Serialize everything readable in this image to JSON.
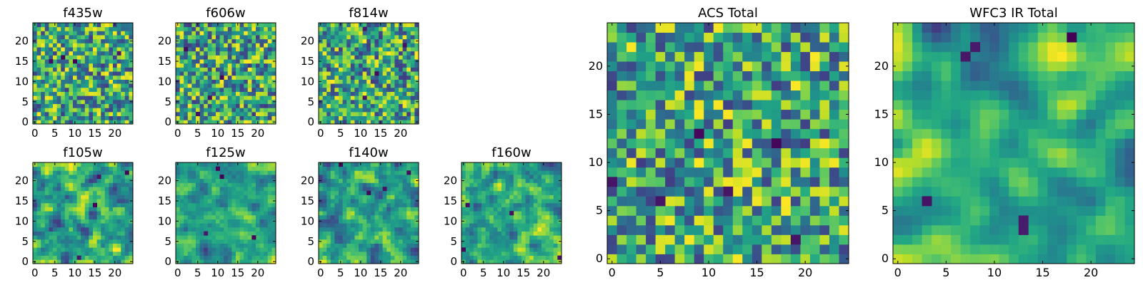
{
  "figure": {
    "colormap": "viridis"
  },
  "chart_data": [
    {
      "type": "heatmap",
      "title": "f435w",
      "grid_size": [
        25,
        25
      ],
      "colormap": "viridis",
      "xticks": [
        0,
        5,
        10,
        15,
        20
      ],
      "yticks": [
        0,
        5,
        10,
        15,
        20
      ],
      "xlim": [
        -0.5,
        24.5
      ],
      "ylim": [
        -0.5,
        24.5
      ]
    },
    {
      "type": "heatmap",
      "title": "f606w",
      "grid_size": [
        25,
        25
      ],
      "colormap": "viridis",
      "xticks": [
        0,
        5,
        10,
        15,
        20
      ],
      "yticks": [
        0,
        5,
        10,
        15,
        20
      ],
      "xlim": [
        -0.5,
        24.5
      ],
      "ylim": [
        -0.5,
        24.5
      ]
    },
    {
      "type": "heatmap",
      "title": "f814w",
      "grid_size": [
        25,
        25
      ],
      "colormap": "viridis",
      "xticks": [
        0,
        5,
        10,
        15,
        20
      ],
      "yticks": [
        0,
        5,
        10,
        15,
        20
      ],
      "xlim": [
        -0.5,
        24.5
      ],
      "ylim": [
        -0.5,
        24.5
      ]
    },
    {
      "type": "heatmap",
      "title": "f105w",
      "grid_size": [
        25,
        25
      ],
      "colormap": "viridis",
      "xticks": [
        0,
        5,
        10,
        15,
        20
      ],
      "yticks": [
        0,
        5,
        10,
        15,
        20
      ],
      "xlim": [
        -0.5,
        24.5
      ],
      "ylim": [
        -0.5,
        24.5
      ]
    },
    {
      "type": "heatmap",
      "title": "f125w",
      "grid_size": [
        25,
        25
      ],
      "colormap": "viridis",
      "xticks": [
        0,
        5,
        10,
        15,
        20
      ],
      "yticks": [
        0,
        5,
        10,
        15,
        20
      ],
      "xlim": [
        -0.5,
        24.5
      ],
      "ylim": [
        -0.5,
        24.5
      ]
    },
    {
      "type": "heatmap",
      "title": "f140w",
      "grid_size": [
        25,
        25
      ],
      "colormap": "viridis",
      "xticks": [
        0,
        5,
        10,
        15,
        20
      ],
      "yticks": [
        0,
        5,
        10,
        15,
        20
      ],
      "xlim": [
        -0.5,
        24.5
      ],
      "ylim": [
        -0.5,
        24.5
      ]
    },
    {
      "type": "heatmap",
      "title": "f160w",
      "grid_size": [
        25,
        25
      ],
      "colormap": "viridis",
      "xticks": [
        0,
        5,
        10,
        15,
        20
      ],
      "yticks": [
        0,
        5,
        10,
        15,
        20
      ],
      "xlim": [
        -0.5,
        24.5
      ],
      "ylim": [
        -0.5,
        24.5
      ]
    },
    {
      "type": "heatmap",
      "title": "ACS Total",
      "grid_size": [
        25,
        25
      ],
      "colormap": "viridis",
      "xticks": [
        0,
        5,
        10,
        15,
        20
      ],
      "yticks": [
        0,
        5,
        10,
        15,
        20
      ],
      "xlim": [
        -0.5,
        24.5
      ],
      "ylim": [
        -0.5,
        24.5
      ]
    },
    {
      "type": "heatmap",
      "title": "WFC3 IR Total",
      "grid_size": [
        25,
        25
      ],
      "colormap": "viridis",
      "xticks": [
        0,
        5,
        10,
        15,
        20
      ],
      "yticks": [
        0,
        5,
        10,
        15,
        20
      ],
      "xlim": [
        -0.5,
        24.5
      ],
      "ylim": [
        -0.5,
        24.5
      ]
    }
  ]
}
